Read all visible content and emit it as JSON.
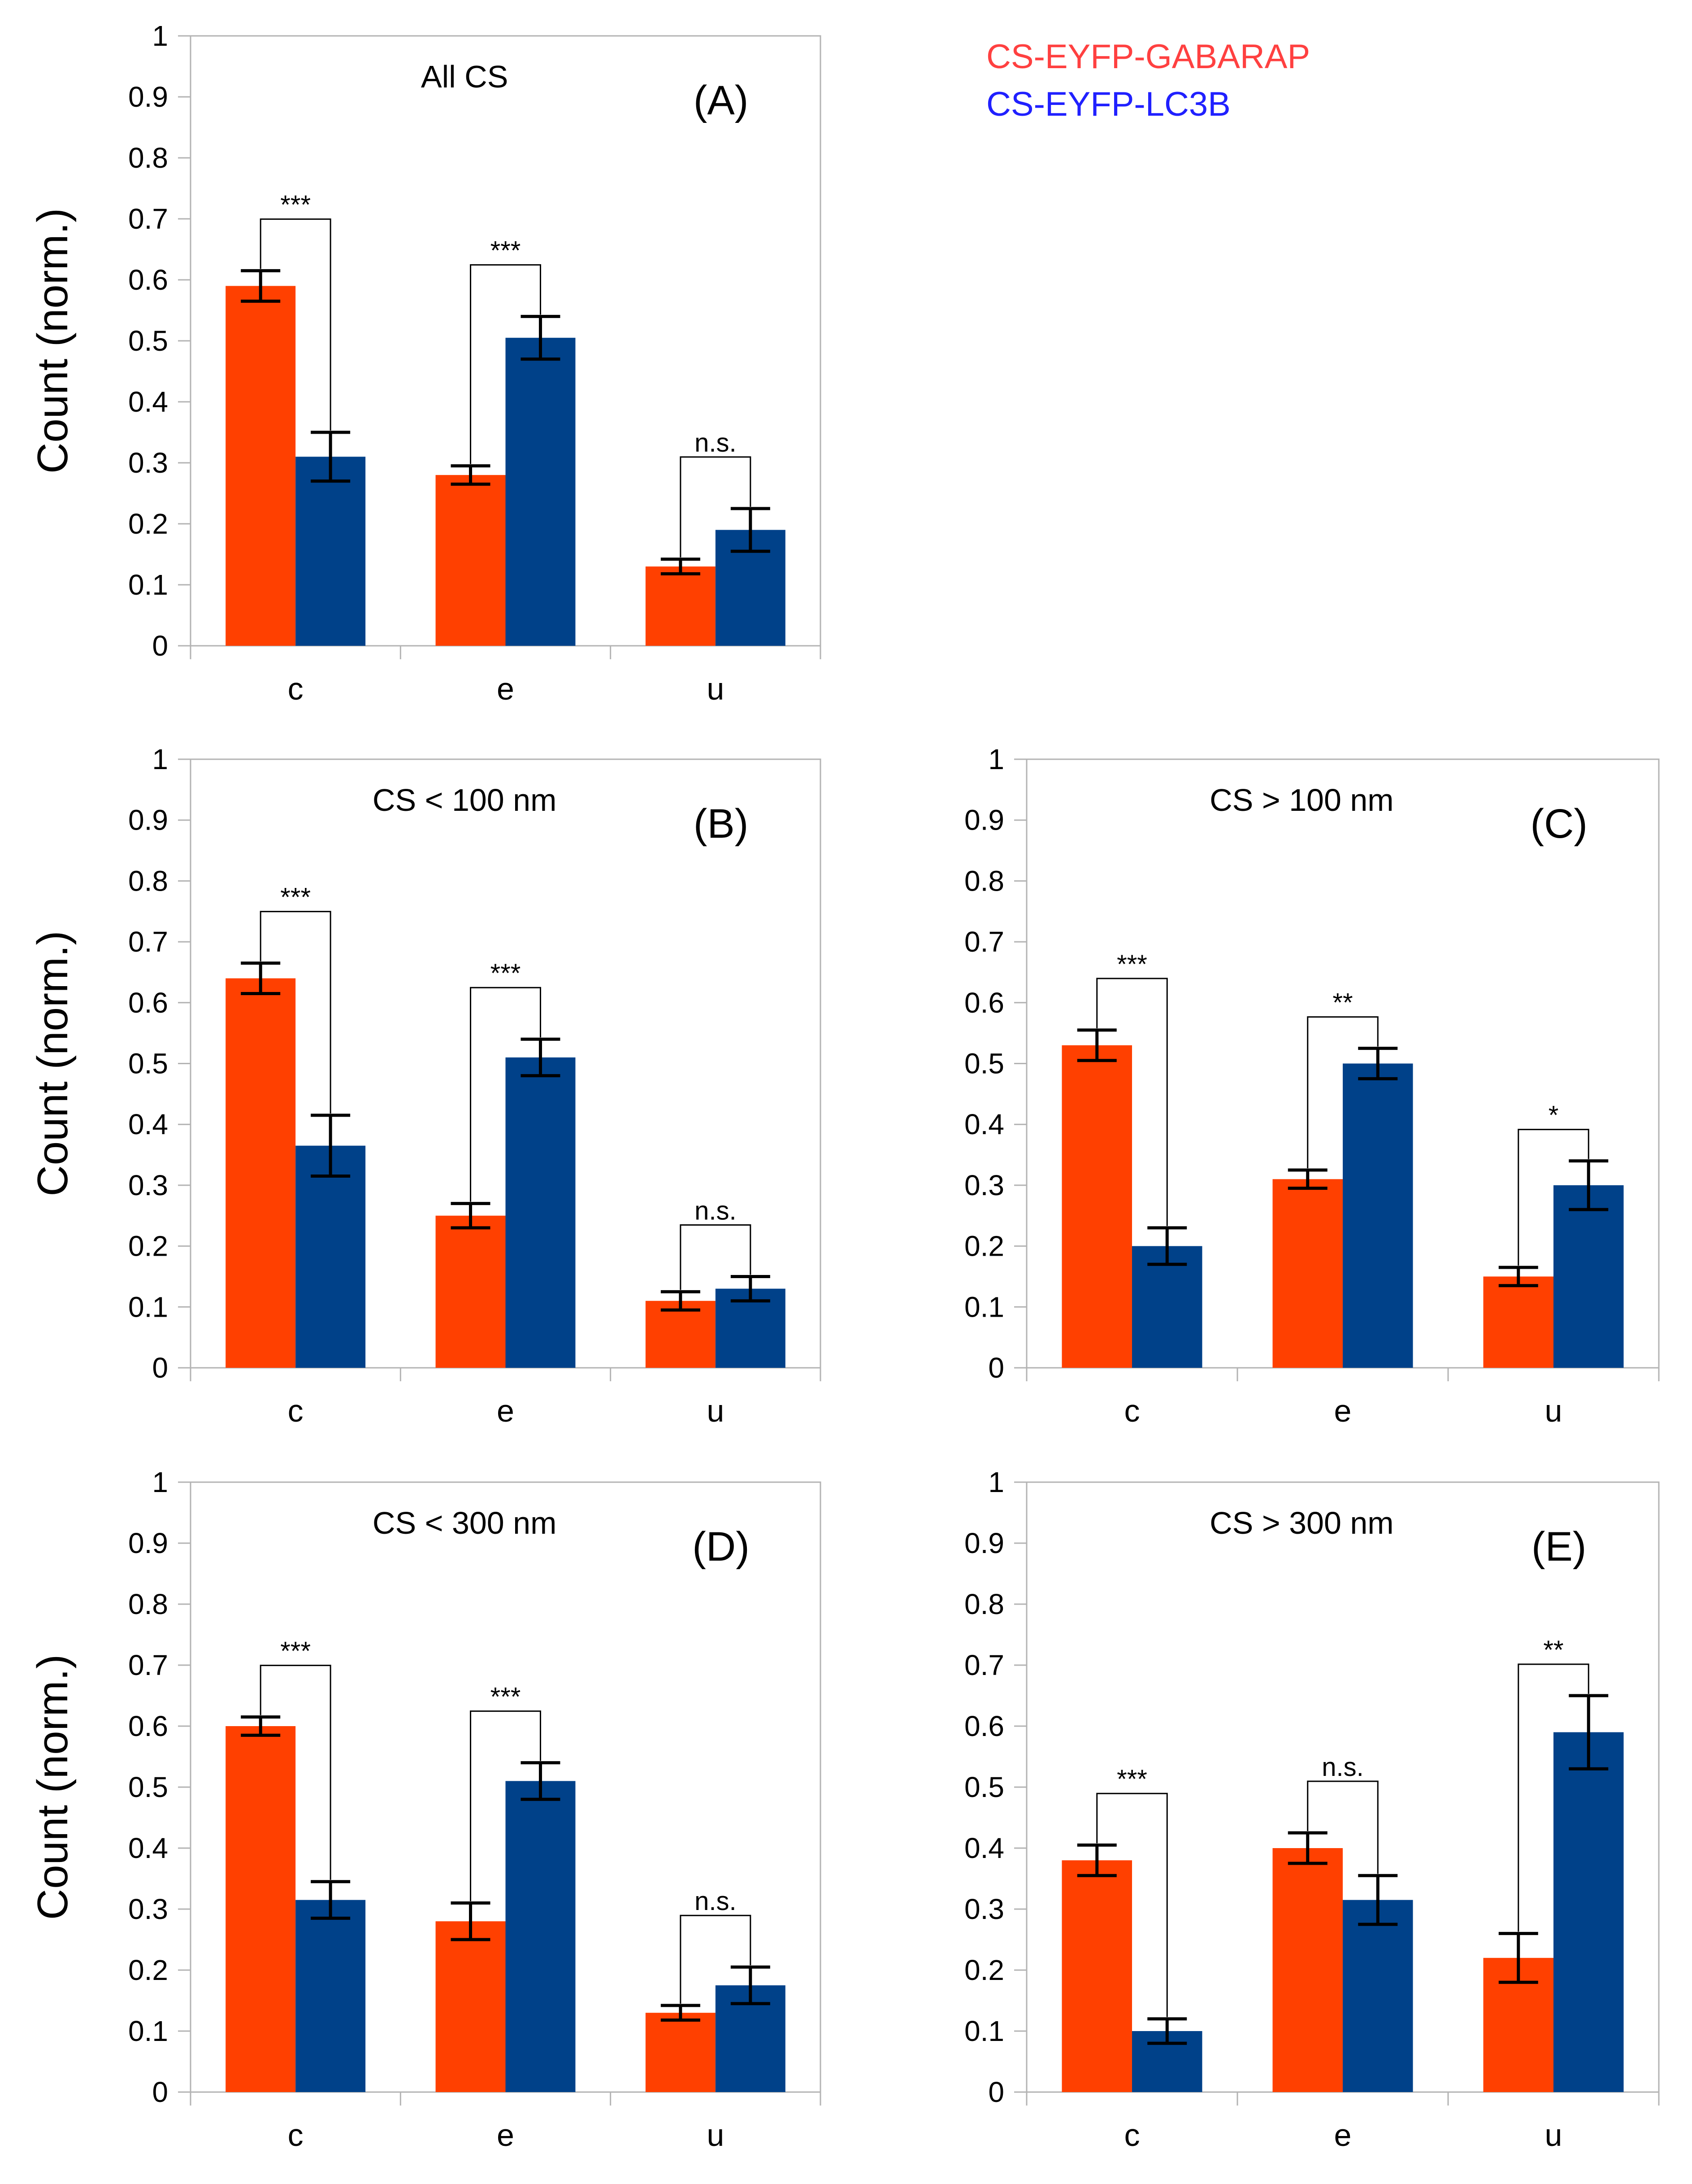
{
  "colors": {
    "gabarap": "#ff4000",
    "lc3b": "#004189",
    "legend_gabarap": "#ff4040",
    "legend_lc3b": "#2020ff"
  },
  "legend": {
    "gabarap": "CS-EYFP-GABARAP",
    "lc3b": "CS-EYFP-LC3B"
  },
  "chart_data": [
    {
      "type": "bar",
      "panel": "(A)",
      "subtitle": "All CS",
      "ylabel": "Count (norm.)",
      "ylim": [
        0,
        1
      ],
      "yticks": [
        "0",
        "0.1",
        "0.2",
        "0.3",
        "0.4",
        "0.5",
        "0.6",
        "0.7",
        "0.8",
        "0.9",
        "1"
      ],
      "categories": [
        "c",
        "e",
        "u"
      ],
      "series": [
        {
          "name": "CS-EYFP-GABARAP",
          "values": [
            0.59,
            0.28,
            0.13
          ],
          "errors": [
            0.025,
            0.015,
            0.012
          ]
        },
        {
          "name": "CS-EYFP-LC3B",
          "values": [
            0.31,
            0.505,
            0.19
          ],
          "errors": [
            0.04,
            0.035,
            0.035
          ]
        }
      ],
      "significance": [
        "***",
        "***",
        "n.s."
      ]
    },
    {
      "type": "bar",
      "panel": "(B)",
      "subtitle": "CS < 100 nm",
      "ylabel": "Count (norm.)",
      "ylim": [
        0,
        1
      ],
      "yticks": [
        "0",
        "0.1",
        "0.2",
        "0.3",
        "0.4",
        "0.5",
        "0.6",
        "0.7",
        "0.8",
        "0.9",
        "1"
      ],
      "categories": [
        "c",
        "e",
        "u"
      ],
      "series": [
        {
          "name": "CS-EYFP-GABARAP",
          "values": [
            0.64,
            0.25,
            0.11
          ],
          "errors": [
            0.025,
            0.02,
            0.015
          ]
        },
        {
          "name": "CS-EYFP-LC3B",
          "values": [
            0.365,
            0.51,
            0.13
          ],
          "errors": [
            0.05,
            0.03,
            0.02
          ]
        }
      ],
      "significance": [
        "***",
        "***",
        "n.s."
      ]
    },
    {
      "type": "bar",
      "panel": "(C)",
      "subtitle": "CS > 100 nm",
      "ylabel": "",
      "ylim": [
        0,
        1
      ],
      "yticks": [
        "0",
        "0.1",
        "0.2",
        "0.3",
        "0.4",
        "0.5",
        "0.6",
        "0.7",
        "0.8",
        "0.9",
        "1"
      ],
      "categories": [
        "c",
        "e",
        "u"
      ],
      "series": [
        {
          "name": "CS-EYFP-GABARAP",
          "values": [
            0.53,
            0.31,
            0.15
          ],
          "errors": [
            0.025,
            0.015,
            0.015
          ]
        },
        {
          "name": "CS-EYFP-LC3B",
          "values": [
            0.2,
            0.5,
            0.3
          ],
          "errors": [
            0.03,
            0.025,
            0.04
          ]
        }
      ],
      "significance": [
        "***",
        "**",
        "*"
      ]
    },
    {
      "type": "bar",
      "panel": "(D)",
      "subtitle": "CS < 300 nm",
      "ylabel": "Count (norm.)",
      "ylim": [
        0,
        1
      ],
      "yticks": [
        "0",
        "0.1",
        "0.2",
        "0.3",
        "0.4",
        "0.5",
        "0.6",
        "0.7",
        "0.8",
        "0.9",
        "1"
      ],
      "categories": [
        "c",
        "e",
        "u"
      ],
      "series": [
        {
          "name": "CS-EYFP-GABARAP",
          "values": [
            0.6,
            0.28,
            0.13
          ],
          "errors": [
            0.015,
            0.03,
            0.012
          ]
        },
        {
          "name": "CS-EYFP-LC3B",
          "values": [
            0.315,
            0.51,
            0.175
          ],
          "errors": [
            0.03,
            0.03,
            0.03
          ]
        }
      ],
      "significance": [
        "***",
        "***",
        "n.s."
      ]
    },
    {
      "type": "bar",
      "panel": "(E)",
      "subtitle": "CS > 300 nm",
      "ylabel": "",
      "ylim": [
        0,
        1
      ],
      "yticks": [
        "0",
        "0.1",
        "0.2",
        "0.3",
        "0.4",
        "0.5",
        "0.6",
        "0.7",
        "0.8",
        "0.9",
        "1"
      ],
      "categories": [
        "c",
        "e",
        "u"
      ],
      "series": [
        {
          "name": "CS-EYFP-GABARAP",
          "values": [
            0.38,
            0.4,
            0.22
          ],
          "errors": [
            0.025,
            0.025,
            0.04
          ]
        },
        {
          "name": "CS-EYFP-LC3B",
          "values": [
            0.1,
            0.315,
            0.59
          ],
          "errors": [
            0.02,
            0.04,
            0.06
          ]
        }
      ],
      "significance": [
        "***",
        "n.s.",
        "**"
      ]
    }
  ]
}
